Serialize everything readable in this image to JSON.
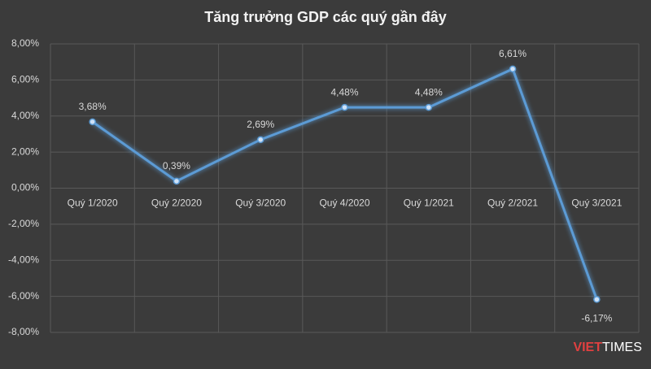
{
  "chart_data": {
    "type": "line",
    "title": "Tăng trưởng GDP các quý gần đây",
    "categories": [
      "Quý 1/2020",
      "Quý 2/2020",
      "Quý 3/2020",
      "Quý 4/2020",
      "Quý 1/2021",
      "Quý 2/2021",
      "Quý 3/2021"
    ],
    "series": [
      {
        "name": "GDP",
        "color": "#5b9bd5",
        "values": [
          3.68,
          0.39,
          2.69,
          4.48,
          4.48,
          6.61,
          -6.17
        ],
        "value_labels": [
          "3,68%",
          "0,39%",
          "2,69%",
          "4,48%",
          "4,48%",
          "6,61%",
          "-6,17%"
        ]
      }
    ],
    "ylim": [
      -8,
      8
    ],
    "yticks": [
      {
        "value": -8,
        "label": "-8,00%"
      },
      {
        "value": -6,
        "label": "-6,00%"
      },
      {
        "value": -4,
        "label": "-4,00%"
      },
      {
        "value": -2,
        "label": "-2,00%"
      },
      {
        "value": 0,
        "label": "0,00%"
      },
      {
        "value": 2,
        "label": "2,00%"
      },
      {
        "value": 4,
        "label": "4,00%"
      },
      {
        "value": 6,
        "label": "6,00%"
      },
      {
        "value": 8,
        "label": "8,00%"
      }
    ],
    "grid": true,
    "logo": [
      "VIET",
      "TIMES"
    ]
  }
}
